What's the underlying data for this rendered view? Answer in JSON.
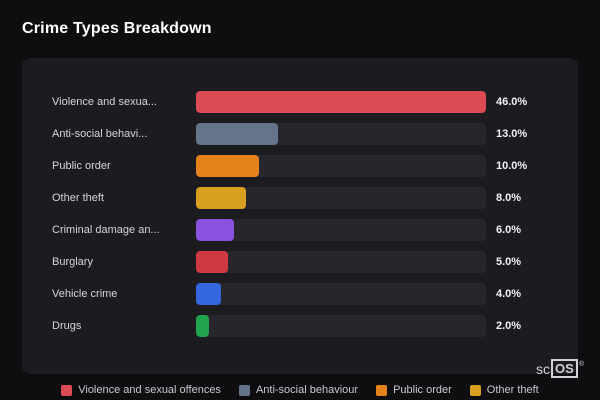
{
  "title": "Crime Types Breakdown",
  "chart_data": {
    "type": "bar",
    "orientation": "horizontal",
    "title": "Crime Types Breakdown",
    "max_value": 46.0,
    "categories": [
      "Violence and sexua...",
      "Anti-social behavi...",
      "Public order",
      "Other theft",
      "Criminal damage an...",
      "Burglary",
      "Vehicle crime",
      "Drugs"
    ],
    "values": [
      46.0,
      13.0,
      10.0,
      8.0,
      6.0,
      5.0,
      4.0,
      2.0
    ],
    "value_labels": [
      "46.0%",
      "13.0%",
      "10.0%",
      "8.0%",
      "6.0%",
      "5.0%",
      "4.0%",
      "2.0%"
    ],
    "colors": [
      "#dc4b55",
      "#64748b",
      "#e5821c",
      "#d9a01f",
      "#8b52e0",
      "#cf3a42",
      "#3467dd",
      "#1fa34d"
    ],
    "track_color": "#26262c",
    "grid": false,
    "legend_position": "bottom"
  },
  "legend": [
    {
      "label": "Violence and sexual offences",
      "color": "#dc4b55"
    },
    {
      "label": "Anti-social behaviour",
      "color": "#64748b"
    },
    {
      "label": "Public order",
      "color": "#e5821c"
    },
    {
      "label": "Other theft",
      "color": "#d9a01f"
    }
  ],
  "branding": {
    "prefix": "sc",
    "box": "OS",
    "reg": "®"
  }
}
